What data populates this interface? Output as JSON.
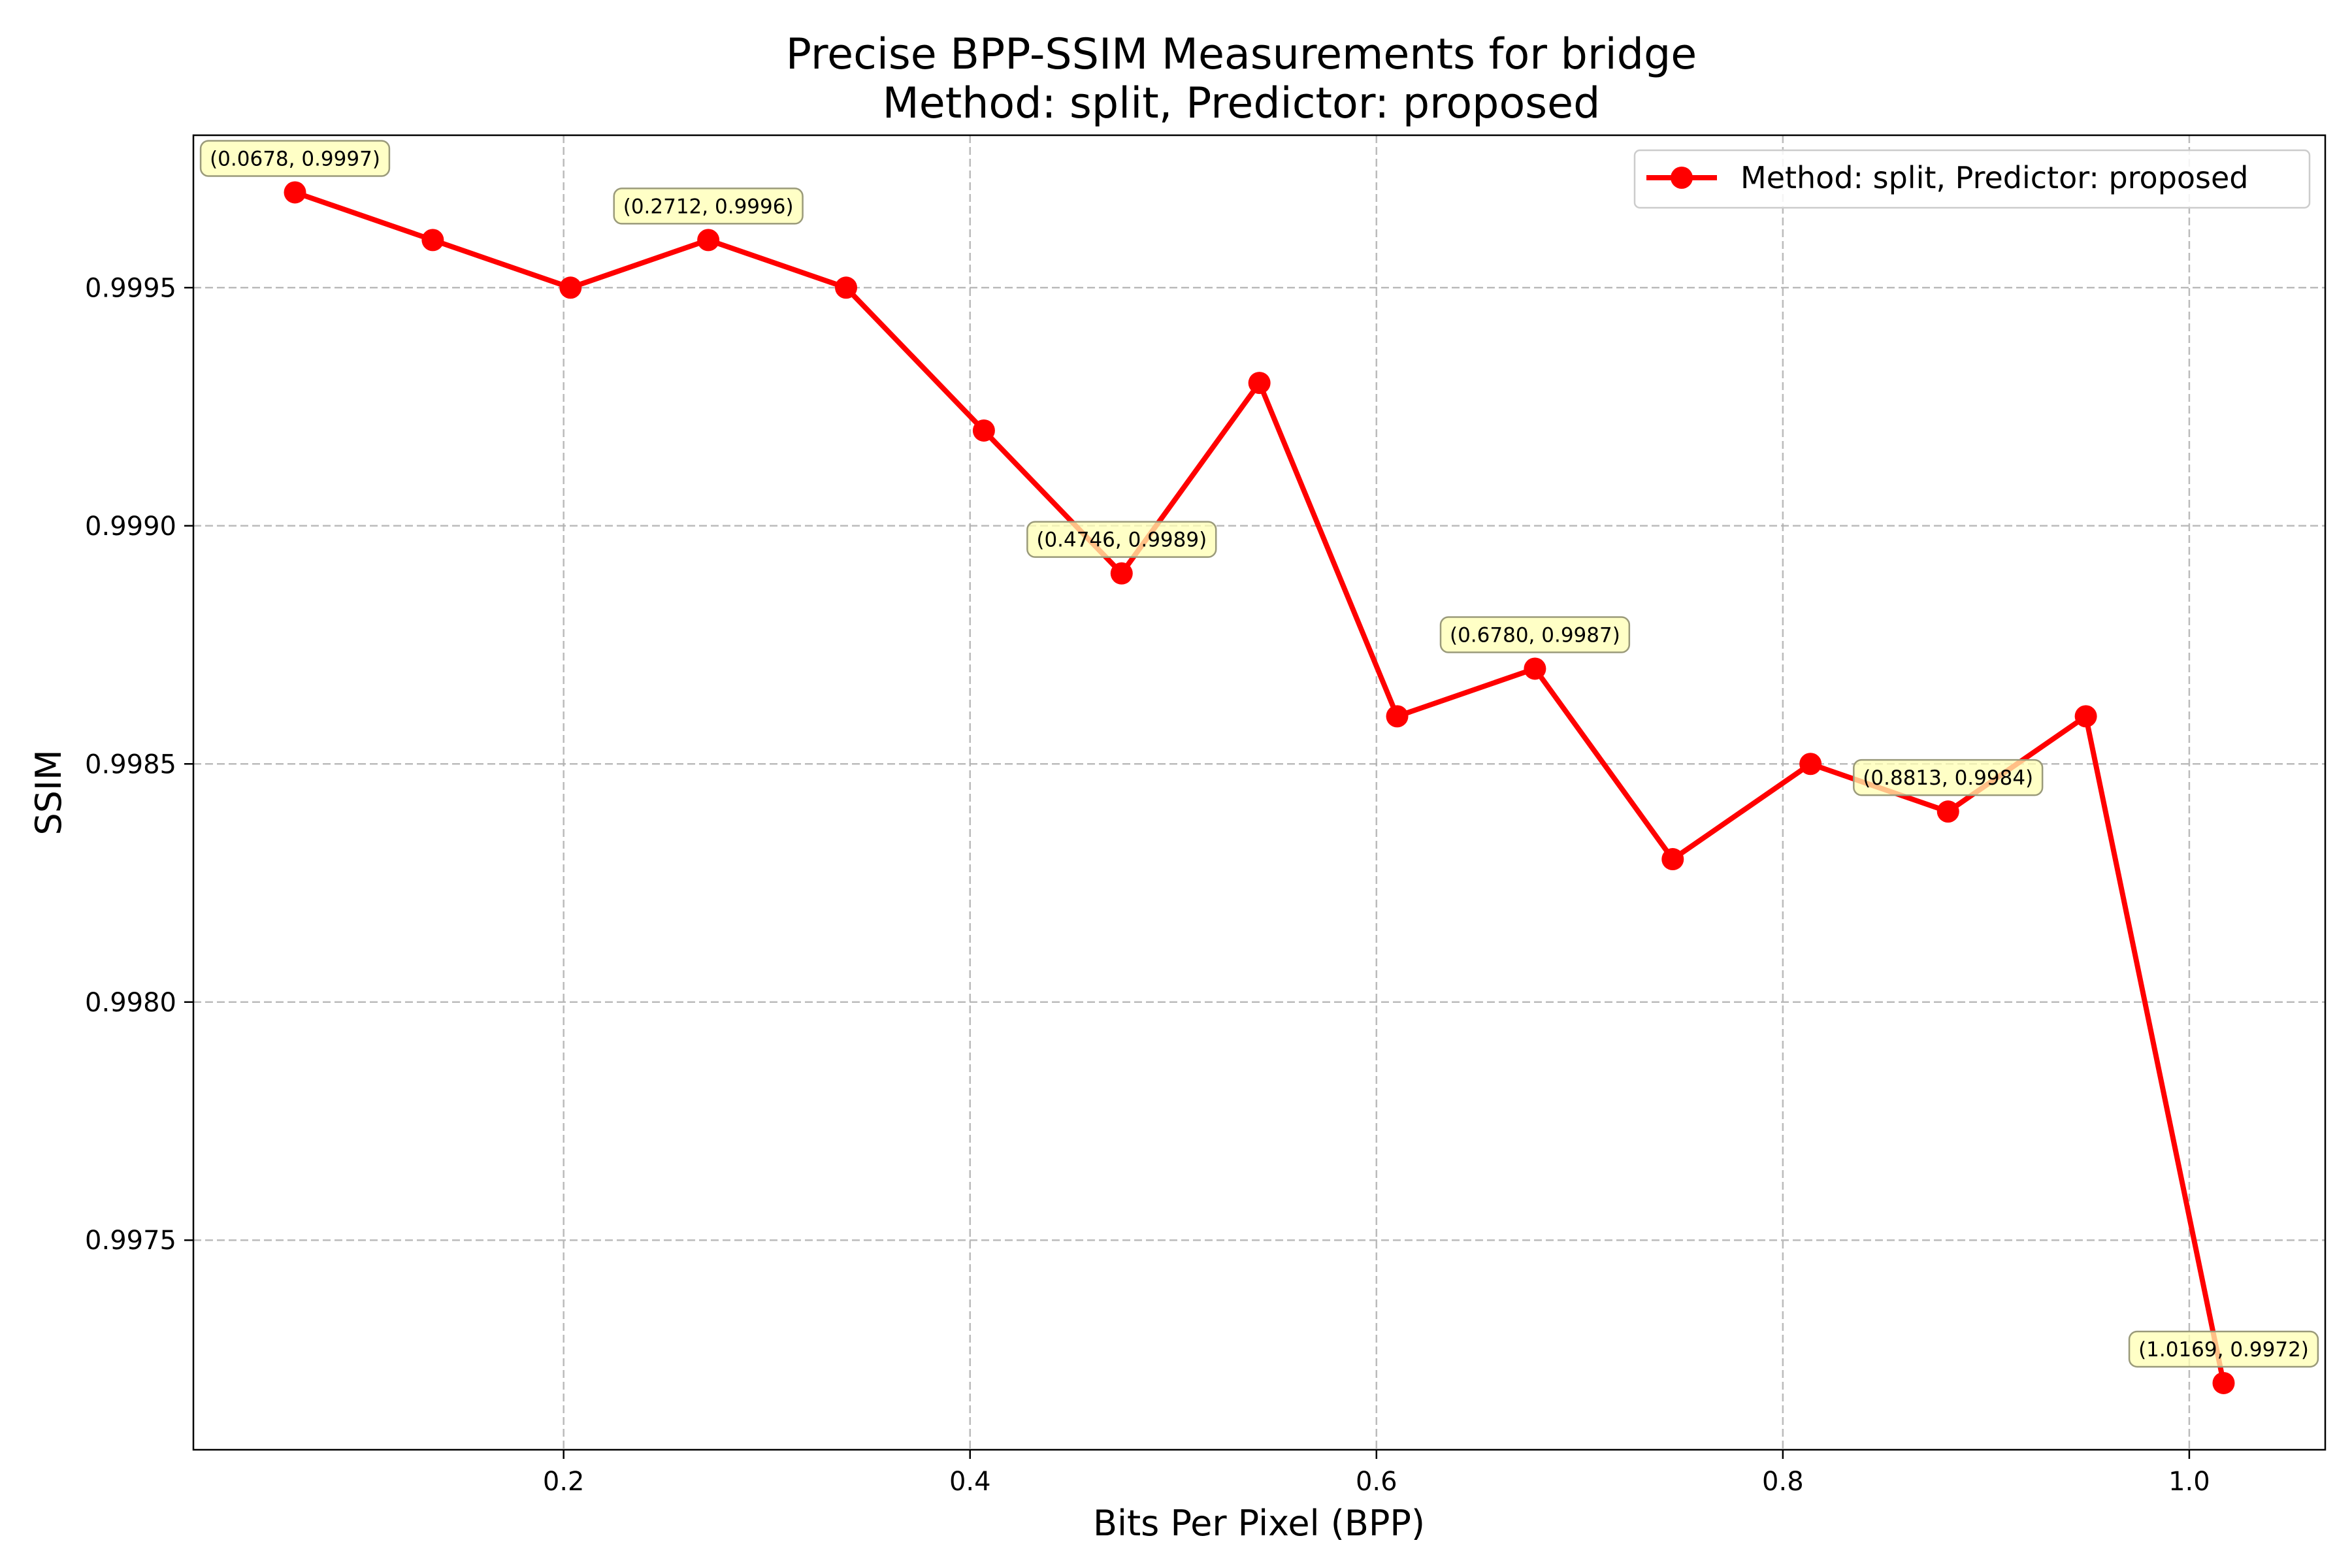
{
  "chart_data": {
    "type": "line",
    "title_line1": "Precise BPP-SSIM Measurements for bridge",
    "title_line2": "Method: split, Predictor: proposed",
    "xlabel": "Bits Per Pixel (BPP)",
    "ylabel": "SSIM",
    "xlim": [
      0.0178,
      1.0669
    ],
    "ylim": [
      0.99706,
      0.99982
    ],
    "xticks": [
      0.2,
      0.4,
      0.6,
      0.8,
      1.0
    ],
    "xtick_labels": [
      "0.2",
      "0.4",
      "0.6",
      "0.8",
      "1.0"
    ],
    "yticks": [
      0.9975,
      0.998,
      0.9985,
      0.999,
      0.9995
    ],
    "ytick_labels": [
      "0.9975",
      "0.9980",
      "0.9985",
      "0.9990",
      "0.9995"
    ],
    "grid": true,
    "legend_position": "top-right",
    "series": [
      {
        "name": "Method: split, Predictor: proposed",
        "color": "#ff0000",
        "marker": "circle",
        "x": [
          0.0678,
          0.1356,
          0.2034,
          0.2712,
          0.339,
          0.4068,
          0.4746,
          0.5424,
          0.6102,
          0.678,
          0.7458,
          0.8136,
          0.8813,
          0.9491,
          1.0169
        ],
        "y": [
          0.9997,
          0.9996,
          0.9995,
          0.9996,
          0.9995,
          0.9992,
          0.9989,
          0.9993,
          0.9986,
          0.9987,
          0.9983,
          0.9985,
          0.9984,
          0.9986,
          0.9972
        ]
      }
    ],
    "annotations": [
      {
        "x": 0.0678,
        "y": 0.9997,
        "text": "(0.0678, 0.9997)"
      },
      {
        "x": 0.2712,
        "y": 0.9996,
        "text": "(0.2712, 0.9996)"
      },
      {
        "x": 0.4746,
        "y": 0.9989,
        "text": "(0.4746, 0.9989)"
      },
      {
        "x": 0.678,
        "y": 0.9987,
        "text": "(0.6780, 0.9987)"
      },
      {
        "x": 0.8813,
        "y": 0.9984,
        "text": "(0.8813, 0.9984)"
      },
      {
        "x": 1.0169,
        "y": 0.9972,
        "text": "(1.0169, 0.9972)"
      }
    ],
    "annotation_style": {
      "fill": "#ffffb3",
      "stroke": "#9a9a7a"
    }
  }
}
